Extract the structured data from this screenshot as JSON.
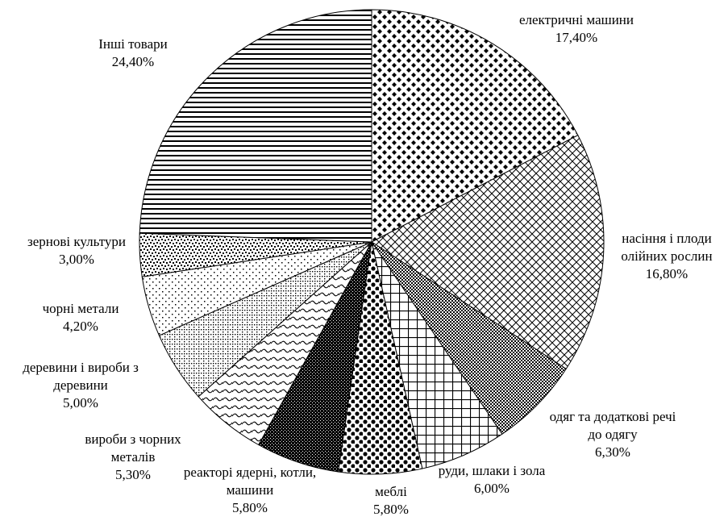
{
  "chart_data": {
    "type": "pie",
    "title": "",
    "start_angle_deg": 0,
    "direction": "clockwise",
    "legend": "none",
    "slices": [
      {
        "category": "електричні машини",
        "value": 17.4,
        "value_label": "17,40%",
        "label_lines": [
          "електричні машини"
        ],
        "pattern": "black-dots-grid"
      },
      {
        "category": "насіння і плоди олійних рослин",
        "value": 16.8,
        "value_label": "16,80%",
        "label_lines": [
          "насіння і плоди",
          "олійних рослин"
        ],
        "pattern": "diagonal-crosshatch"
      },
      {
        "category": "одяг та додаткові речі до одягу",
        "value": 6.3,
        "value_label": "6,30%",
        "label_lines": [
          "одяг та додаткові речі",
          "до одягу"
        ],
        "pattern": "dense-checker"
      },
      {
        "category": "руди, шлаки і зола",
        "value": 6.0,
        "value_label": "6,00%",
        "label_lines": [
          "руди, шлаки і зола"
        ],
        "pattern": "square-grid"
      },
      {
        "category": "меблі",
        "value": 5.8,
        "value_label": "5,80%",
        "label_lines": [
          "меблі"
        ],
        "pattern": "large-dots"
      },
      {
        "category": "реакторі ядерні, котли, машини",
        "value": 5.8,
        "value_label": "5,80%",
        "label_lines": [
          "реакторі ядерні, котли,",
          "машини"
        ],
        "pattern": "dense-dark"
      },
      {
        "category": "вироби з чорних металів",
        "value": 5.3,
        "value_label": "5,30%",
        "label_lines": [
          "вироби з чорних",
          "металів"
        ],
        "pattern": "waves"
      },
      {
        "category": "деревини і вироби з деревини",
        "value": 5.0,
        "value_label": "5,00%",
        "label_lines": [
          "деревини і вироби з",
          "деревини"
        ],
        "pattern": "light-small-grid"
      },
      {
        "category": "чорні метали",
        "value": 4.2,
        "value_label": "4,20%",
        "label_lines": [
          "чорні метали"
        ],
        "pattern": "sparse-dots"
      },
      {
        "category": "зернові культури",
        "value": 3.0,
        "value_label": "3,00%",
        "label_lines": [
          "зернові культури"
        ],
        "pattern": "confetti"
      },
      {
        "category": "Інші товари",
        "value": 24.4,
        "value_label": "24,40%",
        "label_lines": [
          "Інші товари"
        ],
        "pattern": "horizontal-lines"
      }
    ]
  }
}
